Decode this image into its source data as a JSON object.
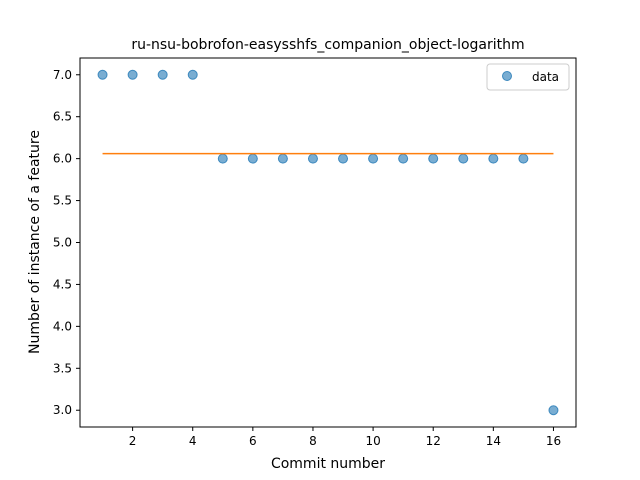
{
  "chart_data": {
    "type": "scatter",
    "title": "ru-nsu-bobrofon-easysshfs_companion_object-logarithm",
    "xlabel": "Commit number",
    "ylabel": "Number of instance of a feature",
    "xlim": [
      0.25,
      16.75
    ],
    "ylim": [
      2.8,
      7.2
    ],
    "xticks": [
      2,
      4,
      6,
      8,
      10,
      12,
      14,
      16
    ],
    "yticks": [
      3.0,
      3.5,
      4.0,
      4.5,
      5.0,
      5.5,
      6.0,
      6.5,
      7.0
    ],
    "xtick_labels": [
      "2",
      "4",
      "6",
      "8",
      "10",
      "12",
      "14",
      "16"
    ],
    "ytick_labels": [
      "3.0",
      "3.5",
      "4.0",
      "4.5",
      "5.0",
      "5.5",
      "6.0",
      "6.5",
      "7.0"
    ],
    "series": [
      {
        "name": "data",
        "kind": "scatter",
        "color": "#1f77b4",
        "x": [
          1,
          2,
          3,
          4,
          5,
          6,
          7,
          8,
          9,
          10,
          11,
          12,
          13,
          14,
          15,
          16
        ],
        "y": [
          7,
          7,
          7,
          7,
          6,
          6,
          6,
          6,
          6,
          6,
          6,
          6,
          6,
          6,
          6,
          3
        ]
      },
      {
        "kind": "line",
        "color": "#ff7f0e",
        "x": [
          1,
          16
        ],
        "y": [
          6.06,
          6.06
        ]
      }
    ],
    "legend": {
      "position": "top-right"
    },
    "grid": false
  }
}
